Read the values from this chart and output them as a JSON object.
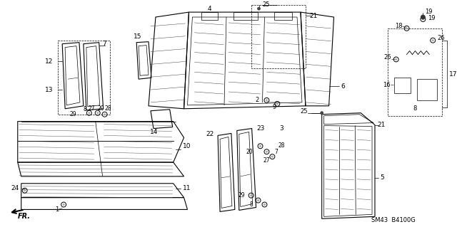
{
  "bg_color": "#ffffff",
  "line_color": "#000000",
  "watermark": "SM43  B4100G",
  "figsize": [
    6.4,
    3.19
  ],
  "dpi": 100,
  "gray": "#555555",
  "lgray": "#999999"
}
